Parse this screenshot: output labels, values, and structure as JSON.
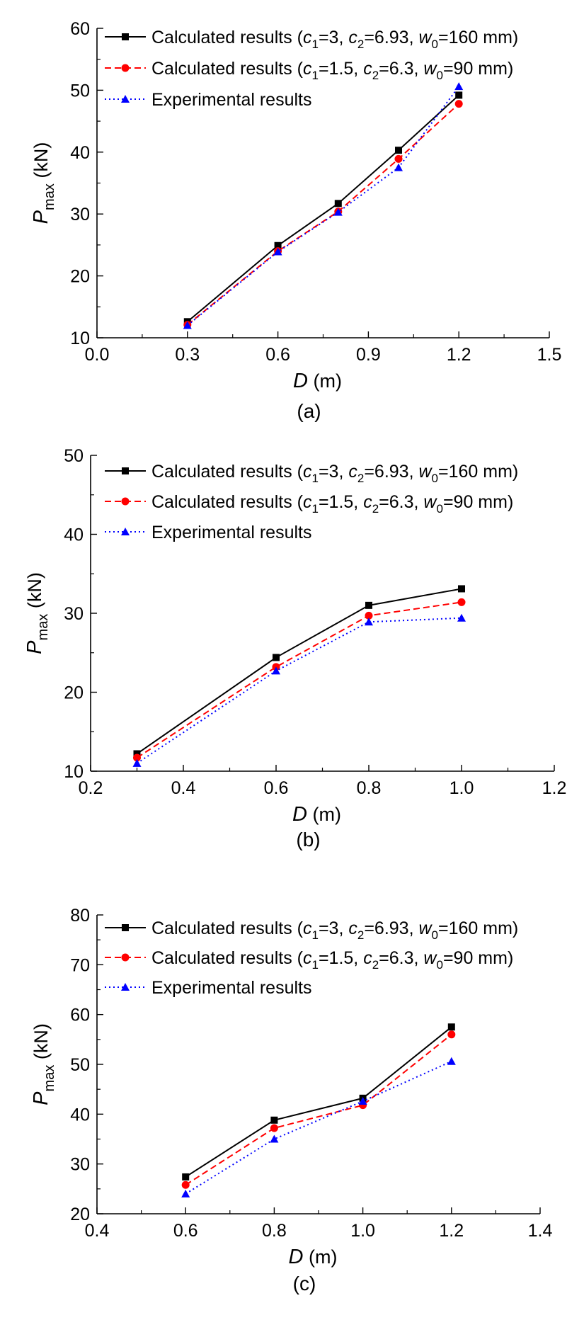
{
  "chart_data": [
    {
      "type": "line",
      "panel_label": "(a)",
      "xlabel": "D",
      "xlabel_unit": "(m)",
      "ylabel_main": "P",
      "ylabel_sub": "max",
      "ylabel_unit": "(kN)",
      "xlim": [
        0.0,
        1.5
      ],
      "ylim": [
        10,
        60
      ],
      "xticks": [
        "0.0",
        "0.3",
        "0.6",
        "0.9",
        "1.2",
        "1.5"
      ],
      "xtick_values": [
        0.0,
        0.3,
        0.6,
        0.9,
        1.2,
        1.5
      ],
      "yticks": [
        "10",
        "20",
        "30",
        "40",
        "50",
        "60"
      ],
      "ytick_values": [
        10,
        20,
        30,
        40,
        50,
        60
      ],
      "grid": false,
      "legend_position": "top-left",
      "series": [
        {
          "name": "Calculated results (c1=3, c2=6.93, w0=160 mm)",
          "legend_parts": [
            "Calculated results (",
            "c",
            "1",
            "=3, ",
            "c",
            "2",
            "=6.93, ",
            "w",
            "0",
            "=160 mm)"
          ],
          "color": "#000000",
          "marker": "square",
          "dash": "solid",
          "x": [
            0.3,
            0.6,
            0.8,
            1.0,
            1.2
          ],
          "y": [
            12.6,
            24.9,
            31.7,
            40.3,
            49.2
          ]
        },
        {
          "name": "Calculated results (c1=1.5, c2=6.3, w0=90 mm)",
          "legend_parts": [
            "Calculated results (",
            "c",
            "1",
            "=1.5, ",
            "c",
            "2",
            "=6.3, ",
            "w",
            "0",
            "=90 mm)"
          ],
          "color": "#ff0000",
          "marker": "circle",
          "dash": "dash",
          "x": [
            0.3,
            0.6,
            0.8,
            1.0,
            1.2
          ],
          "y": [
            12.1,
            24.0,
            30.4,
            38.9,
            47.8
          ]
        },
        {
          "name": "Experimental results",
          "legend_parts": [
            "Experimental results"
          ],
          "color": "#0000ff",
          "marker": "triangle",
          "dash": "dot",
          "x": [
            0.3,
            0.6,
            0.8,
            1.0,
            1.2
          ],
          "y": [
            12.0,
            23.9,
            30.3,
            37.5,
            50.6
          ]
        }
      ]
    },
    {
      "type": "line",
      "panel_label": "(b)",
      "xlabel": "D",
      "xlabel_unit": "(m)",
      "ylabel_main": "P",
      "ylabel_sub": "max",
      "ylabel_unit": "(kN)",
      "xlim": [
        0.2,
        1.2
      ],
      "ylim": [
        10,
        50
      ],
      "xticks": [
        "0.2",
        "0.4",
        "0.6",
        "0.8",
        "1.0",
        "1.2"
      ],
      "xtick_values": [
        0.2,
        0.4,
        0.6,
        0.8,
        1.0,
        1.2
      ],
      "yticks": [
        "10",
        "20",
        "30",
        "40",
        "50"
      ],
      "ytick_values": [
        10,
        20,
        30,
        40,
        50
      ],
      "grid": false,
      "legend_position": "top-left",
      "series": [
        {
          "name": "Calculated results (c1=3, c2=6.93, w0=160 mm)",
          "legend_parts": [
            "Calculated results (",
            "c",
            "1",
            "=3, ",
            "c",
            "2",
            "=6.93, ",
            "w",
            "0",
            "=160 mm)"
          ],
          "color": "#000000",
          "marker": "square",
          "dash": "solid",
          "x": [
            0.3,
            0.6,
            0.8,
            1.0
          ],
          "y": [
            12.2,
            24.4,
            31.0,
            33.1
          ]
        },
        {
          "name": "Calculated results (c1=1.5, c2=6.3, w0=90 mm)",
          "legend_parts": [
            "Calculated results (",
            "c",
            "1",
            "=1.5, ",
            "c",
            "2",
            "=6.3, ",
            "w",
            "0",
            "=90 mm)"
          ],
          "color": "#ff0000",
          "marker": "circle",
          "dash": "dash",
          "x": [
            0.3,
            0.6,
            0.8,
            1.0
          ],
          "y": [
            11.7,
            23.2,
            29.7,
            31.4
          ]
        },
        {
          "name": "Experimental results",
          "legend_parts": [
            "Experimental results"
          ],
          "color": "#0000ff",
          "marker": "triangle",
          "dash": "dot",
          "x": [
            0.3,
            0.6,
            0.8,
            1.0
          ],
          "y": [
            11.0,
            22.7,
            28.9,
            29.4
          ]
        }
      ]
    },
    {
      "type": "line",
      "panel_label": "(c)",
      "xlabel": "D",
      "xlabel_unit": "(m)",
      "ylabel_main": "P",
      "ylabel_sub": "max",
      "ylabel_unit": "(kN)",
      "xlim": [
        0.4,
        1.4
      ],
      "ylim": [
        20,
        80
      ],
      "xticks": [
        "0.4",
        "0.6",
        "0.8",
        "1.0",
        "1.2",
        "1.4"
      ],
      "xtick_values": [
        0.4,
        0.6,
        0.8,
        1.0,
        1.2,
        1.4
      ],
      "yticks": [
        "20",
        "30",
        "40",
        "50",
        "60",
        "70",
        "80"
      ],
      "ytick_values": [
        20,
        30,
        40,
        50,
        60,
        70,
        80
      ],
      "grid": false,
      "legend_position": "top-left",
      "series": [
        {
          "name": "Calculated results (c1=3, c2=6.93, w0=160 mm)",
          "legend_parts": [
            "Calculated results (",
            "c",
            "1",
            "=3, ",
            "c",
            "2",
            "=6.93, ",
            "w",
            "0",
            "=160 mm)"
          ],
          "color": "#000000",
          "marker": "square",
          "dash": "solid",
          "x": [
            0.6,
            0.8,
            1.0,
            1.2
          ],
          "y": [
            27.4,
            38.8,
            43.2,
            57.5
          ]
        },
        {
          "name": "Calculated results (c1=1.5, c2=6.3, w0=90 mm)",
          "legend_parts": [
            "Calculated results (",
            "c",
            "1",
            "=1.5, ",
            "c",
            "2",
            "=6.3, ",
            "w",
            "0",
            "=90 mm)"
          ],
          "color": "#ff0000",
          "marker": "circle",
          "dash": "dash",
          "x": [
            0.6,
            0.8,
            1.0,
            1.2
          ],
          "y": [
            25.8,
            37.2,
            41.8,
            56.0
          ]
        },
        {
          "name": "Experimental results",
          "legend_parts": [
            "Experimental results"
          ],
          "color": "#0000ff",
          "marker": "triangle",
          "dash": "dot",
          "x": [
            0.6,
            0.8,
            1.0,
            1.2
          ],
          "y": [
            24.0,
            35.0,
            42.6,
            50.6
          ]
        }
      ]
    }
  ]
}
